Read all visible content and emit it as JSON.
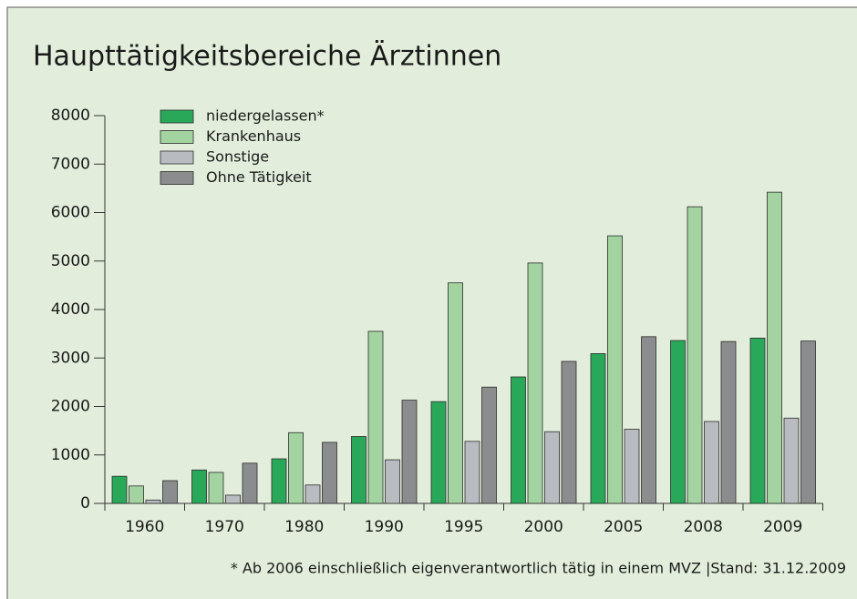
{
  "chart_data": {
    "type": "bar",
    "title": "Haupttätigkeitsbereiche Ärztinnen",
    "footnote": "* Ab 2006 einschließlich eigenverantwortlich tätig in einem MVZ |Stand: 31.12.2009",
    "categories": [
      "1960",
      "1970",
      "1980",
      "1990",
      "1995",
      "2000",
      "2005",
      "2008",
      "2009"
    ],
    "series": [
      {
        "name": "niedergelassen*",
        "color": "#2aa85a",
        "values": [
          560,
          690,
          920,
          1380,
          2100,
          2610,
          3090,
          3360,
          3410
        ]
      },
      {
        "name": "Krankenhaus",
        "color": "#a3d3a0",
        "values": [
          360,
          640,
          1460,
          3550,
          4550,
          4960,
          5520,
          6120,
          6420
        ]
      },
      {
        "name": "Sonstige",
        "color": "#b8bcc0",
        "values": [
          70,
          170,
          380,
          900,
          1280,
          1480,
          1530,
          1690,
          1760
        ]
      },
      {
        "name": "Ohne Tätigkeit",
        "color": "#8a8c8e",
        "values": [
          470,
          830,
          1260,
          2130,
          2400,
          2930,
          3440,
          3340,
          3350
        ]
      }
    ],
    "ylim": [
      0,
      8000
    ],
    "yticks": [
      0,
      1000,
      2000,
      3000,
      4000,
      5000,
      6000,
      7000,
      8000
    ],
    "legend": "top-left"
  }
}
